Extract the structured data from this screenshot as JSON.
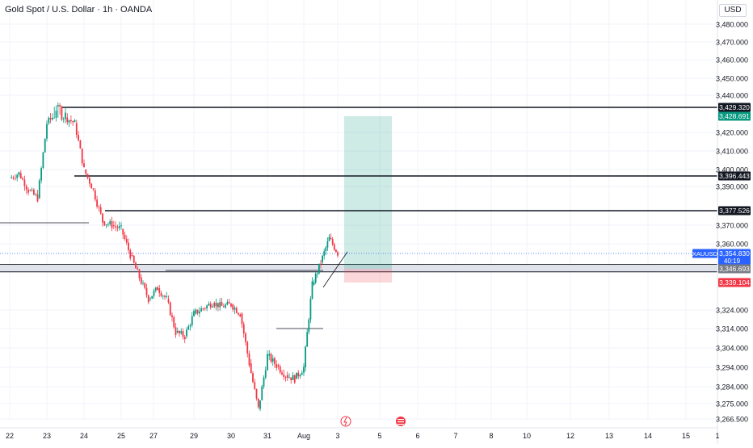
{
  "header": {
    "title": "Gold Spot / U.S. Dollar · 1h · OANDA",
    "currency": "USD"
  },
  "chart_data": {
    "type": "candlestick",
    "title": "Gold Spot / U.S. Dollar · 1h · OANDA",
    "symbol": "XAUUSD",
    "yaxis_ticks": [
      "3,480.000",
      "3,470.000",
      "3,460.000",
      "3,450.000",
      "3,440.000",
      "3,420.000",
      "3,410.000",
      "3,400.000",
      "3,390.000",
      "3,370.000",
      "3,360.000",
      "3,324.000",
      "3,314.000",
      "3,304.000",
      "3,294.000",
      "3,284.000",
      "3,275.000",
      "3,266.500"
    ],
    "xaxis_ticks": [
      "22",
      "23",
      "24",
      "25",
      "27",
      "29",
      "30",
      "31",
      "Aug",
      "3",
      "5",
      "6",
      "7",
      "8",
      "10",
      "12",
      "13",
      "14",
      "15",
      "1"
    ],
    "price_series": [
      {
        "time": "Jul 22 00:00",
        "close": 3395
      },
      {
        "time": "Jul 22 06:00",
        "close": 3398
      },
      {
        "time": "Jul 22 12:00",
        "close": 3388
      },
      {
        "time": "Jul 22 18:00",
        "close": 3384
      },
      {
        "time": "Jul 23 00:00",
        "close": 3425
      },
      {
        "time": "Jul 23 06:00",
        "close": 3430
      },
      {
        "time": "Jul 23 12:00",
        "close": 3428
      },
      {
        "time": "Jul 23 18:00",
        "close": 3425
      },
      {
        "time": "Jul 24 00:00",
        "close": 3400
      },
      {
        "time": "Jul 24 06:00",
        "close": 3388
      },
      {
        "time": "Jul 24 12:00",
        "close": 3372
      },
      {
        "time": "Jul 24 18:00",
        "close": 3370
      },
      {
        "time": "Jul 25 00:00",
        "close": 3368
      },
      {
        "time": "Jul 25 06:00",
        "close": 3354
      },
      {
        "time": "Jul 25 12:00",
        "close": 3342
      },
      {
        "time": "Jul 25 18:00",
        "close": 3330
      },
      {
        "time": "Jul 28 00:00",
        "close": 3336
      },
      {
        "time": "Jul 28 06:00",
        "close": 3330
      },
      {
        "time": "Jul 28 12:00",
        "close": 3312
      },
      {
        "time": "Jul 28 18:00",
        "close": 3310
      },
      {
        "time": "Jul 29 00:00",
        "close": 3322
      },
      {
        "time": "Jul 29 06:00",
        "close": 3325
      },
      {
        "time": "Jul 29 12:00",
        "close": 3328
      },
      {
        "time": "Jul 29 18:00",
        "close": 3326
      },
      {
        "time": "Jul 30 00:00",
        "close": 3327
      },
      {
        "time": "Jul 30 06:00",
        "close": 3322
      },
      {
        "time": "Jul 30 12:00",
        "close": 3296
      },
      {
        "time": "Jul 30 18:00",
        "close": 3272
      },
      {
        "time": "Jul 31 00:00",
        "close": 3300
      },
      {
        "time": "Jul 31 06:00",
        "close": 3295
      },
      {
        "time": "Jul 31 12:00",
        "close": 3290
      },
      {
        "time": "Jul 31 18:00",
        "close": 3288
      },
      {
        "time": "Aug 1 00:00",
        "close": 3294
      },
      {
        "time": "Aug 1 06:00",
        "close": 3338
      },
      {
        "time": "Aug 1 12:00",
        "close": 3350
      },
      {
        "time": "Aug 1 18:00",
        "close": 3363
      },
      {
        "time": "Aug 4 00:00",
        "close": 3355
      }
    ],
    "horizontal_levels": [
      {
        "price": 3429.32,
        "label": "3,429.320",
        "color": "#131722"
      },
      {
        "price": 3396.443,
        "label": "3,396.443",
        "color": "#131722"
      },
      {
        "price": 3377.526,
        "label": "3,377.526",
        "color": "#131722"
      },
      {
        "price": 3346.693,
        "label": "3,346.693",
        "color": "#787b86"
      }
    ],
    "current_price": {
      "price": 3354.83,
      "label": "3,354.830",
      "countdown": "40:19",
      "symbol": "XAUUSD",
      "color": "#2962ff"
    },
    "long_position": {
      "entry": 3346.693,
      "target_label": "3,428.691",
      "target": 3428.691,
      "stop_label": "3,339.104",
      "stop": 3339.104,
      "profit_color": "#089981",
      "loss_color": "#f23645"
    },
    "colors": {
      "up": "#089981",
      "down": "#f23645",
      "grid": "#f0f3fa"
    }
  }
}
